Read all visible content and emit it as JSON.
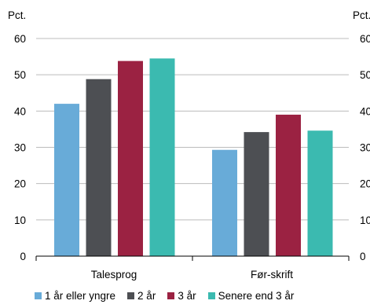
{
  "chart_data": {
    "type": "bar",
    "categories": [
      "Talesprog",
      "Før-skrift"
    ],
    "series": [
      {
        "name": "1 år eller yngre",
        "color": "#68ABD8",
        "values": [
          42,
          29.3
        ]
      },
      {
        "name": "2 år",
        "color": "#4D4F53",
        "values": [
          48.8,
          34.2
        ]
      },
      {
        "name": "3 år",
        "color": "#9B2242",
        "values": [
          53.8,
          39
        ]
      },
      {
        "name": "Senere end 3 år",
        "color": "#3BBAB0",
        "values": [
          54.5,
          34.6
        ]
      }
    ],
    "ylabel_left": "Pct.",
    "ylabel_right": "Pct.",
    "ylim": [
      0,
      60
    ],
    "yticks": [
      0,
      10,
      20,
      30,
      40,
      50,
      60
    ],
    "grid": true,
    "legend_position": "bottom"
  }
}
